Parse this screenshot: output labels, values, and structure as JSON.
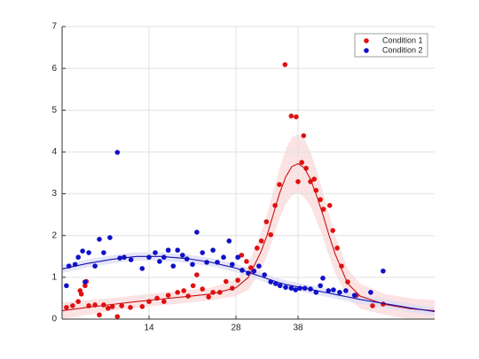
{
  "chart_data": {
    "type": "scatter",
    "xlim": [
      0,
      60
    ],
    "ylim": [
      0,
      7
    ],
    "xticks": [
      14,
      28,
      38
    ],
    "yticks": [
      0,
      1,
      2,
      3,
      4,
      5,
      6,
      7
    ],
    "grid": true,
    "legend": "upper right",
    "series": [
      {
        "name": "Condition 1",
        "color": "#e01010",
        "x": [
          0.7,
          1.7,
          2.6,
          2.9,
          3.1,
          3.9,
          3.7,
          4.3,
          5.3,
          6,
          6.7,
          7.4,
          8.1,
          8.9,
          9.6,
          11,
          12.9,
          14,
          15.3,
          16.4,
          17.1,
          18.6,
          19.6,
          20.3,
          21.1,
          21.7,
          22.6,
          23.6,
          24.3,
          25.4,
          26.4,
          27.4,
          28.3,
          28.9,
          29.7,
          30.4,
          31.4,
          32.1,
          32.9,
          33.6,
          34.3,
          35,
          35.9,
          36.9,
          37.7,
          38,
          38.6,
          38.9,
          39.3,
          40,
          40.6,
          40.9,
          41.6,
          42.1,
          43.1,
          43.6,
          44.3,
          45,
          46,
          47.4,
          50,
          51.7
        ],
        "values": [
          0.28,
          0.32,
          0.42,
          0.68,
          0.6,
          0.9,
          0.8,
          0.32,
          0.34,
          0.1,
          0.34,
          0.26,
          0.3,
          0.06,
          0.32,
          0.28,
          0.3,
          0.42,
          0.5,
          0.42,
          0.57,
          0.64,
          0.68,
          0.55,
          0.8,
          1.06,
          0.72,
          0.53,
          0.64,
          0.64,
          0.9,
          0.74,
          0.93,
          1.53,
          1.38,
          1.23,
          1.7,
          1.87,
          2.33,
          2.02,
          2.72,
          3.22,
          6.09,
          4.86,
          4.84,
          3.29,
          3.75,
          4.39,
          3.61,
          3.29,
          3.35,
          3.08,
          2.86,
          2.63,
          2.72,
          2.12,
          1.7,
          1.27,
          0.89,
          0.57,
          0.32,
          0.36
        ]
      },
      {
        "name": "Condition 2",
        "color": "#1010c8",
        "x": [
          0.7,
          1.1,
          2.1,
          2.6,
          3.3,
          3.7,
          4.3,
          5.3,
          6,
          6.7,
          7.7,
          8.9,
          9.3,
          10,
          11.1,
          12.9,
          14,
          15,
          15.7,
          16.4,
          17.1,
          17.9,
          18.6,
          19.4,
          20.1,
          21,
          21.7,
          22.6,
          23.3,
          24.3,
          25,
          26,
          26.9,
          27.4,
          28.3,
          29,
          30,
          30.9,
          31.7,
          32.6,
          33.6,
          34.4,
          35.1,
          36,
          36.9,
          37.6,
          38.3,
          39.1,
          40,
          40.9,
          41.6,
          42,
          42.9,
          43.7,
          44.7,
          45.7,
          47.1,
          49.7,
          51.7
        ],
        "values": [
          0.8,
          1.27,
          1.31,
          1.48,
          1.63,
          0.89,
          1.59,
          1.27,
          1.91,
          1.59,
          1.95,
          3.99,
          1.46,
          1.48,
          1.42,
          1.21,
          1.48,
          1.59,
          1.38,
          1.48,
          1.65,
          1.27,
          1.65,
          1.53,
          1.44,
          1.31,
          2.08,
          1.59,
          1.36,
          1.65,
          1.36,
          1.48,
          1.87,
          1.31,
          1.48,
          1.17,
          1.1,
          1.15,
          1.27,
          1.06,
          0.89,
          0.85,
          0.8,
          0.76,
          0.74,
          0.7,
          0.74,
          0.74,
          0.72,
          0.64,
          0.8,
          0.98,
          0.68,
          0.7,
          0.64,
          0.68,
          0.57,
          0.64,
          1.15
        ]
      }
    ],
    "fits": [
      {
        "color": "#cc1010",
        "band_color": "#fadada",
        "x": [
          0,
          4,
          8,
          12,
          16,
          20,
          24,
          28,
          30,
          32,
          33,
          34,
          35,
          36,
          37,
          38,
          39,
          40,
          41,
          42,
          43,
          44,
          46,
          48,
          52,
          56,
          60
        ],
        "values": [
          0.2,
          0.28,
          0.35,
          0.42,
          0.48,
          0.54,
          0.6,
          0.75,
          1.0,
          1.6,
          2.0,
          2.5,
          3.0,
          3.4,
          3.65,
          3.72,
          3.62,
          3.35,
          2.95,
          2.5,
          2.0,
          1.55,
          0.85,
          0.55,
          0.35,
          0.25,
          0.2
        ],
        "lower": [
          0,
          0.1,
          0.2,
          0.27,
          0.33,
          0.39,
          0.45,
          0.55,
          0.7,
          1.15,
          1.5,
          1.95,
          2.4,
          2.75,
          2.95,
          3.02,
          2.92,
          2.7,
          2.35,
          1.95,
          1.5,
          1.1,
          0.5,
          0.25,
          0.1,
          0,
          0
        ],
        "upper": [
          0.4,
          0.46,
          0.5,
          0.57,
          0.63,
          0.69,
          0.75,
          0.95,
          1.3,
          2.05,
          2.5,
          3.05,
          3.6,
          4.05,
          4.35,
          4.42,
          4.32,
          4.0,
          3.55,
          3.05,
          2.5,
          2.0,
          1.2,
          0.85,
          0.6,
          0.5,
          0.45
        ]
      },
      {
        "color": "#1010b0",
        "band_color": "#dcdcf6",
        "x": [
          0,
          4,
          8,
          12,
          16,
          20,
          24,
          28,
          30,
          32,
          33,
          34,
          35,
          36,
          37,
          38,
          39,
          40,
          41,
          42,
          43,
          44,
          46,
          48,
          52,
          56,
          60
        ],
        "values": [
          1.2,
          1.33,
          1.43,
          1.5,
          1.5,
          1.45,
          1.36,
          1.22,
          1.12,
          1.02,
          0.97,
          0.92,
          0.87,
          0.83,
          0.8,
          0.77,
          0.74,
          0.71,
          0.68,
          0.65,
          0.62,
          0.59,
          0.53,
          0.47,
          0.37,
          0.27,
          0.18
        ],
        "lower": [
          1.1,
          1.23,
          1.33,
          1.4,
          1.4,
          1.35,
          1.26,
          1.12,
          1.02,
          0.92,
          0.87,
          0.82,
          0.77,
          0.73,
          0.7,
          0.67,
          0.64,
          0.61,
          0.58,
          0.55,
          0.52,
          0.49,
          0.43,
          0.37,
          0.27,
          0.17,
          0.08
        ],
        "upper": [
          1.3,
          1.43,
          1.53,
          1.6,
          1.6,
          1.55,
          1.46,
          1.32,
          1.22,
          1.12,
          1.07,
          1.02,
          0.97,
          0.93,
          0.9,
          0.87,
          0.84,
          0.81,
          0.78,
          0.75,
          0.72,
          0.69,
          0.63,
          0.57,
          0.47,
          0.37,
          0.28
        ]
      }
    ]
  }
}
